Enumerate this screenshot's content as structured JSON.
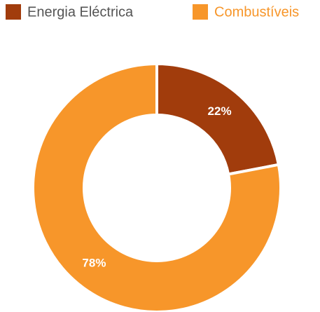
{
  "chart_data": {
    "type": "pie",
    "donut": true,
    "categories": [
      "Energia Eléctrica",
      "Combustíveis"
    ],
    "values": [
      22,
      78
    ],
    "value_labels": [
      "22%",
      "78%"
    ],
    "colors": [
      "#a13c0c",
      "#f7962a"
    ]
  }
}
